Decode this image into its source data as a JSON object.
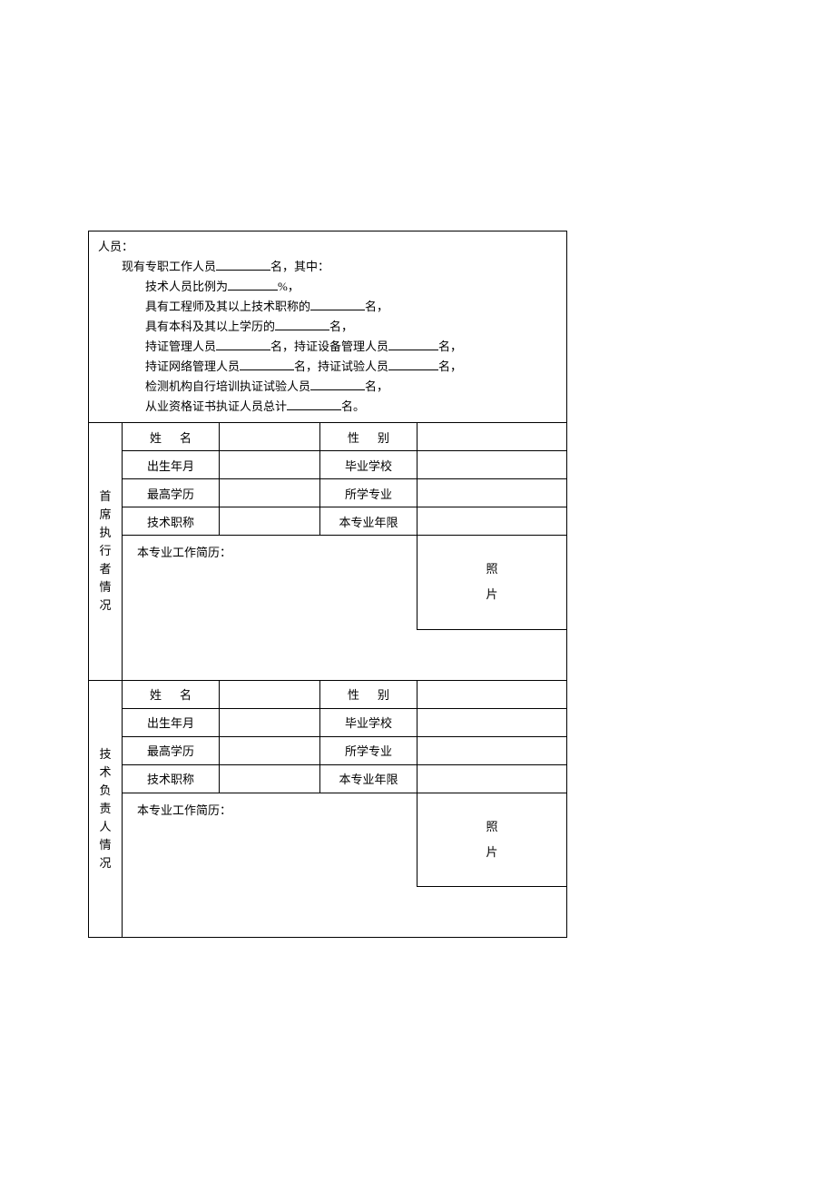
{
  "top": {
    "header": "人员：",
    "line1_a": "现有专职工作人员",
    "line1_b": "名，其中：",
    "line2_a": "技术人员比例为",
    "line2_b": "%，",
    "line3_a": "具有工程师及其以上技术职称的",
    "line3_b": "名，",
    "line4_a": "具有本科及其以上学历的",
    "line4_b": "名，",
    "line5_a": "持证管理人员",
    "line5_b": "名，持证设备管理人员",
    "line5_c": "名，",
    "line6_a": "持证网络管理人员",
    "line6_b": "名，持证试验人员",
    "line6_c": "名，",
    "line7_a": "检测机构自行培训执证试验人员",
    "line7_b": "名，",
    "line8_a": "从业资格证书执证人员总计",
    "line8_b": "名。"
  },
  "section1": {
    "title": "首席执行者情况",
    "name_label": "姓名",
    "gender_label": "性别",
    "dob_label": "出生年月",
    "school_label": "毕业学校",
    "edu_label": "最高学历",
    "major_label": "所学专业",
    "title_label": "技术职称",
    "years_label": "本专业年限",
    "resume_label": "本专业工作简历：",
    "photo_a": "照",
    "photo_b": "片"
  },
  "section2": {
    "title": "技术负责人情况",
    "name_label": "姓名",
    "gender_label": "性别",
    "dob_label": "出生年月",
    "school_label": "毕业学校",
    "edu_label": "最高学历",
    "major_label": "所学专业",
    "title_label": "技术职称",
    "years_label": "本专业年限",
    "resume_label": "本专业工作简历：",
    "photo_a": "照",
    "photo_b": "片"
  }
}
